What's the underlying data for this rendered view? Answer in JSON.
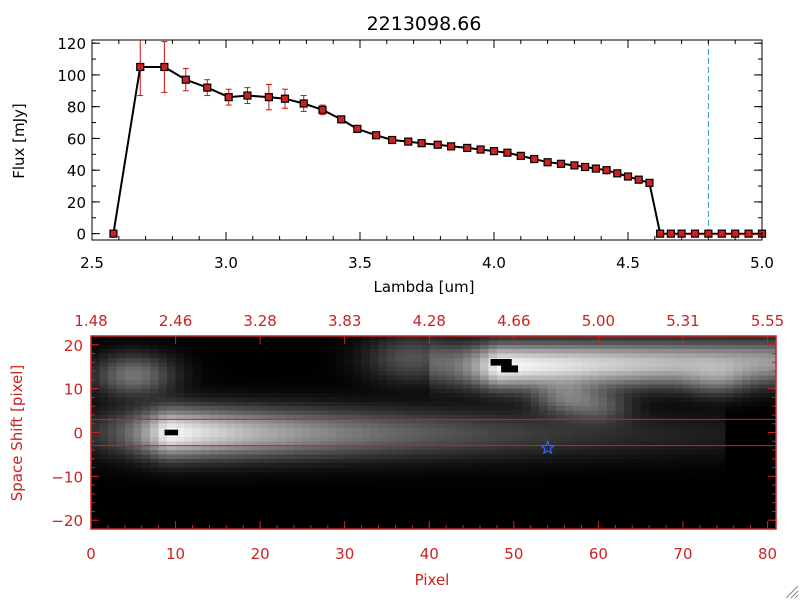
{
  "colors": {
    "axis_top": "#000000",
    "axis_bottom": "#cc2222",
    "error_bar": "#cc1111",
    "marker_fill": "#cc2222",
    "dashed_line": "#3399cc",
    "star": "#3366ff",
    "extraction_lines": "#cc2222"
  },
  "chart_data": [
    {
      "type": "line",
      "title": "2213098.66",
      "xlabel": "Lambda [um]",
      "ylabel": "Flux [mJy]",
      "xlim": [
        2.5,
        5.0
      ],
      "ylim": [
        -4,
        122
      ],
      "x_ticks": [
        2.5,
        3.0,
        3.5,
        4.0,
        4.5,
        5.0
      ],
      "x_tick_labels": [
        "2.5",
        "3.0",
        "3.5",
        "4.0",
        "4.5",
        "5.0"
      ],
      "y_ticks": [
        0,
        20,
        40,
        60,
        80,
        100,
        120
      ],
      "y_tick_labels": [
        "0",
        "20",
        "40",
        "60",
        "80",
        "100",
        "120"
      ],
      "grid": false,
      "dashed_vline_x": 4.8,
      "series": [
        {
          "x": [
            2.58,
            2.68,
            2.77,
            2.85,
            2.93,
            3.01,
            3.08,
            3.16,
            3.22,
            3.29,
            3.36,
            3.43,
            3.49,
            3.56,
            3.62,
            3.68,
            3.73,
            3.79,
            3.84,
            3.9,
            3.95,
            4.0,
            4.05,
            4.1,
            4.15,
            4.2,
            4.25,
            4.3,
            4.34,
            4.38,
            4.42,
            4.46,
            4.5,
            4.54,
            4.58,
            4.62,
            4.66,
            4.7,
            4.75,
            4.8,
            4.85,
            4.9,
            4.95,
            5.0
          ],
          "y": [
            0,
            105,
            105,
            97,
            92,
            86,
            87,
            86,
            85,
            82,
            78,
            72,
            66,
            62,
            59,
            58,
            57,
            56,
            55,
            54,
            53,
            52,
            51,
            49,
            47,
            45,
            44,
            43,
            42,
            41,
            40,
            38,
            36,
            34,
            32,
            0,
            0,
            0,
            0,
            0,
            0,
            0,
            0,
            0
          ],
          "yerr": [
            0,
            18,
            16,
            7,
            5,
            5,
            5,
            8,
            6,
            5,
            3,
            1,
            1,
            1,
            1,
            1,
            1,
            1,
            1,
            1,
            1,
            1,
            1,
            1,
            1,
            1,
            1,
            1,
            1,
            1,
            1,
            1,
            1,
            1,
            1,
            0,
            0,
            0,
            0,
            0,
            0,
            0,
            0,
            0
          ]
        }
      ]
    },
    {
      "type": "heatmap",
      "xlabel": "Pixel",
      "ylabel": "Space Shift [pixel]",
      "xlim": [
        0,
        81
      ],
      "ylim": [
        -22,
        22
      ],
      "x_ticks": [
        0,
        10,
        20,
        30,
        40,
        50,
        60,
        70,
        80
      ],
      "x_tick_labels": [
        "0",
        "10",
        "20",
        "30",
        "40",
        "50",
        "60",
        "70",
        "80"
      ],
      "y_ticks": [
        -20,
        -10,
        0,
        10,
        20
      ],
      "y_tick_labels": [
        "−20",
        "−10",
        "0",
        "10",
        "20"
      ],
      "top_axis_ticks": [
        0,
        10,
        20,
        30,
        40,
        50,
        60,
        70,
        80
      ],
      "top_axis_labels": [
        "1.48",
        "2.46",
        "3.28",
        "3.83",
        "4.28",
        "4.66",
        "5.00",
        "5.31",
        "5.55"
      ],
      "extraction_lines_y": [
        3,
        -3
      ],
      "star_position": [
        54,
        -3.5
      ],
      "traces": [
        {
          "x_start": 0,
          "x_end": 75,
          "y_start": 0,
          "y_end": -0.5,
          "width": 3.5,
          "peak_x": 9,
          "peak": 1.0,
          "falloff": 0.045
        },
        {
          "x_start": 40,
          "x_end": 81,
          "y_start": 15,
          "y_end": 16,
          "width": 3.2,
          "peak_x": 48,
          "peak": 1.0,
          "falloff": 0.02
        }
      ],
      "blobs": [
        {
          "x": 5,
          "y": 13,
          "r": 3,
          "amp": 0.35
        },
        {
          "x": 38,
          "y": 17,
          "r": 3.5,
          "amp": 0.22
        },
        {
          "x": 56,
          "y": 8,
          "r": 2.5,
          "amp": 0.3
        },
        {
          "x": 60,
          "y": 6,
          "r": 2.5,
          "amp": 0.22
        },
        {
          "x": 74,
          "y": 12,
          "r": 2.5,
          "amp": 0.2
        }
      ],
      "saturated_spots": [
        {
          "x": 9.5,
          "y": 0,
          "w": 1.6,
          "h": 1.3
        },
        {
          "x": 48.5,
          "y": 16,
          "w": 2.5,
          "h": 1.5
        },
        {
          "x": 49.5,
          "y": 14.5,
          "w": 2.0,
          "h": 1.6
        }
      ]
    }
  ]
}
